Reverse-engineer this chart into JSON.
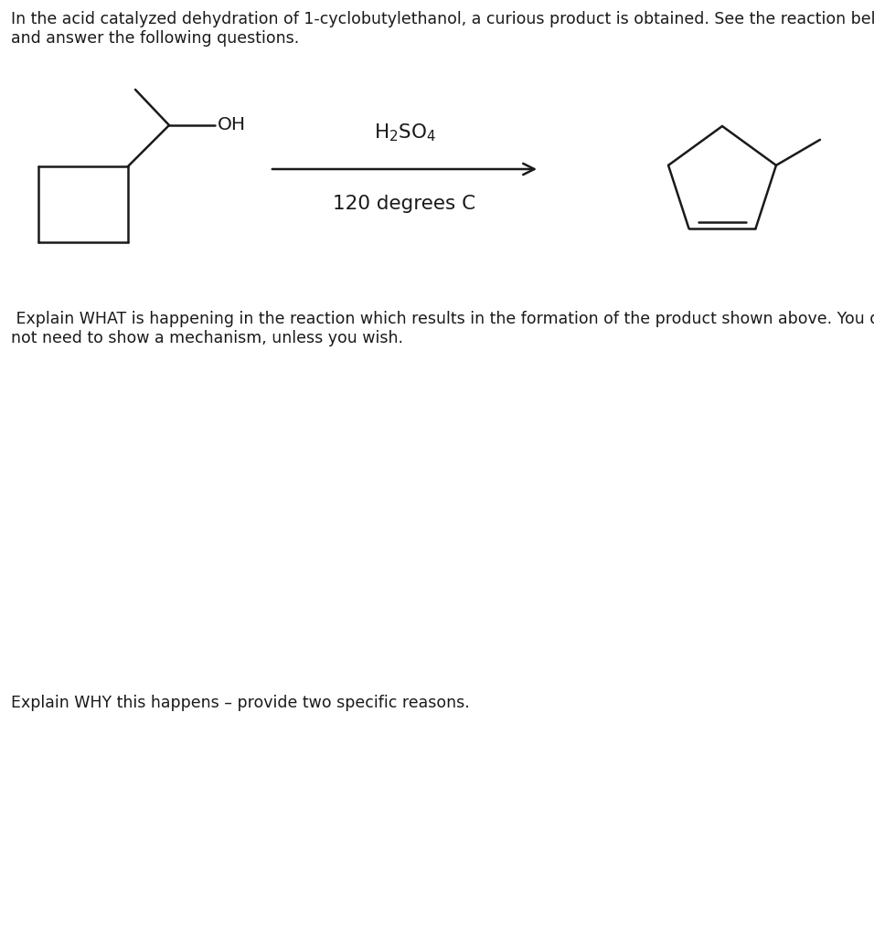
{
  "title_text": "In the acid catalyzed dehydration of 1-cyclobutylethanol, a curious product is obtained. See the reaction below\nand answer the following questions.",
  "reagent_line1": "H$_2$SO$_4$",
  "reagent_line2": "120 degrees C",
  "question1": " Explain WHAT is happening in the reaction which results in the formation of the product shown above. You do\nnot need to show a mechanism, unless you wish.",
  "question2": "Explain WHY this happens – provide two specific reasons.",
  "bg_color": "#ffffff",
  "text_color": "#1a1a1a",
  "line_color": "#1a1a1a",
  "font_size_body": 12.5,
  "fig_width": 9.56,
  "fig_height": 10.24,
  "dpi": 100
}
